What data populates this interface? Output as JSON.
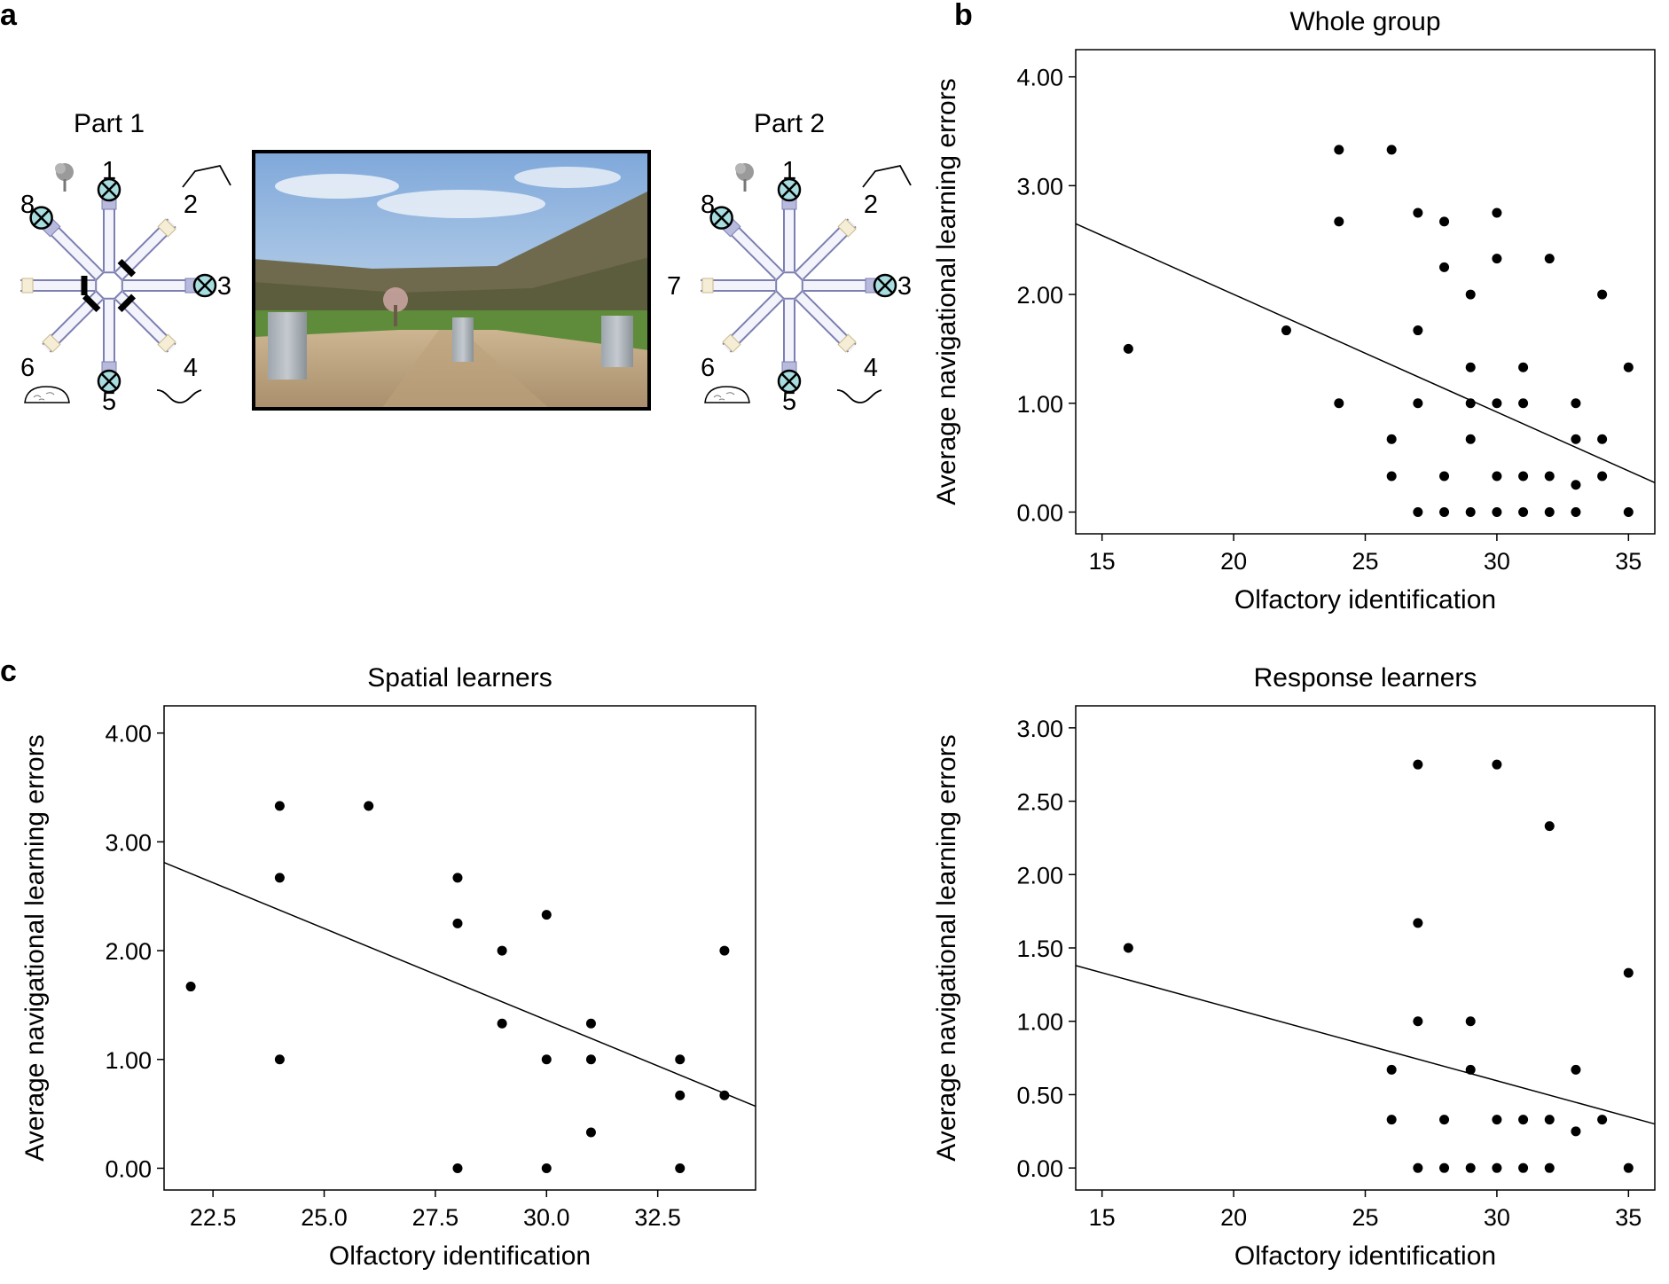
{
  "panel_labels": {
    "a": "a",
    "b": "b",
    "c": "c"
  },
  "panel_a": {
    "part1_label": "Part 1",
    "part2_label": "Part 2",
    "arm_numbers": [
      "1",
      "2",
      "3",
      "4",
      "5",
      "6",
      "7",
      "8"
    ],
    "part1_goal_arms": [
      1,
      3,
      5,
      8
    ],
    "part2_goal_arms": [
      1,
      3,
      5,
      8
    ],
    "landmark_icons": [
      "tree-icon",
      "hill-icon",
      "stone-icon",
      "wave-icon"
    ]
  },
  "chart_data": [
    {
      "id": "whole-group",
      "type": "scatter",
      "title": "Whole group",
      "xlabel": "Olfactory identification",
      "ylabel": "Average navigational learning errors",
      "xlim": [
        14,
        36
      ],
      "ylim": [
        -0.2,
        4.25
      ],
      "xticks": [
        "15",
        "20",
        "25",
        "30",
        "35"
      ],
      "yticks": [
        "0.00",
        "1.00",
        "2.00",
        "3.00",
        "4.00"
      ],
      "points": [
        [
          16,
          1.5
        ],
        [
          22,
          1.67
        ],
        [
          24,
          3.33
        ],
        [
          24,
          2.67
        ],
        [
          24,
          1.0
        ],
        [
          26,
          3.33
        ],
        [
          26,
          0.67
        ],
        [
          26,
          0.33
        ],
        [
          27,
          2.75
        ],
        [
          27,
          1.67
        ],
        [
          27,
          1.0
        ],
        [
          27,
          0
        ],
        [
          28,
          2.67
        ],
        [
          28,
          2.25
        ],
        [
          28,
          0.33
        ],
        [
          28,
          0
        ],
        [
          29,
          2.0
        ],
        [
          29,
          1.33
        ],
        [
          29,
          1.0
        ],
        [
          29,
          0.67
        ],
        [
          29,
          0
        ],
        [
          30,
          2.75
        ],
        [
          30,
          2.33
        ],
        [
          30,
          1.0
        ],
        [
          30,
          0.33
        ],
        [
          30,
          0
        ],
        [
          31,
          1.33
        ],
        [
          31,
          1.0
        ],
        [
          31,
          0.33
        ],
        [
          31,
          0
        ],
        [
          32,
          2.33
        ],
        [
          32,
          0.33
        ],
        [
          32,
          0
        ],
        [
          33,
          1.0
        ],
        [
          33,
          0.67
        ],
        [
          33,
          0.25
        ],
        [
          33,
          0
        ],
        [
          34,
          2.0
        ],
        [
          34,
          0.67
        ],
        [
          34,
          0.33
        ],
        [
          35,
          1.33
        ],
        [
          35,
          0
        ]
      ],
      "fit_line": [
        [
          14,
          2.65
        ],
        [
          36,
          0.27
        ]
      ]
    },
    {
      "id": "spatial-learners",
      "type": "scatter",
      "title": "Spatial learners",
      "xlabel": "Olfactory identification",
      "ylabel": "Average navigational learning errors",
      "xlim": [
        21.4,
        34.7
      ],
      "ylim": [
        -0.2,
        4.25
      ],
      "xticks": [
        "22.5",
        "25.0",
        "27.5",
        "30.0",
        "32.5"
      ],
      "yticks": [
        "0.00",
        "1.00",
        "2.00",
        "3.00",
        "4.00"
      ],
      "points": [
        [
          22,
          1.67
        ],
        [
          24,
          3.33
        ],
        [
          24,
          2.67
        ],
        [
          24,
          1.0
        ],
        [
          26,
          3.33
        ],
        [
          28,
          2.67
        ],
        [
          28,
          2.25
        ],
        [
          28,
          0
        ],
        [
          29,
          2.0
        ],
        [
          29,
          1.33
        ],
        [
          30,
          2.33
        ],
        [
          30,
          1.0
        ],
        [
          30,
          0
        ],
        [
          31,
          1.33
        ],
        [
          31,
          1.0
        ],
        [
          31,
          0.33
        ],
        [
          33,
          1.0
        ],
        [
          33,
          0.67
        ],
        [
          33,
          0
        ],
        [
          34,
          2.0
        ],
        [
          34,
          0.67
        ]
      ],
      "fit_line": [
        [
          21.4,
          2.81
        ],
        [
          34.7,
          0.57
        ]
      ]
    },
    {
      "id": "response-learners",
      "type": "scatter",
      "title": "Response learners",
      "xlabel": "Olfactory identification",
      "ylabel": "Average navigational learning errors",
      "xlim": [
        14,
        36
      ],
      "ylim": [
        -0.15,
        3.15
      ],
      "xticks": [
        "15",
        "20",
        "25",
        "30",
        "35"
      ],
      "yticks": [
        "0.00",
        "0.50",
        "1.00",
        "1.50",
        "2.00",
        "2.50",
        "3.00"
      ],
      "points": [
        [
          16,
          1.5
        ],
        [
          26,
          0.67
        ],
        [
          26,
          0.33
        ],
        [
          27,
          2.75
        ],
        [
          27,
          1.67
        ],
        [
          27,
          1.0
        ],
        [
          27,
          0
        ],
        [
          28,
          0.33
        ],
        [
          28,
          0
        ],
        [
          29,
          1.0
        ],
        [
          29,
          0.67
        ],
        [
          29,
          0
        ],
        [
          30,
          2.75
        ],
        [
          30,
          0.33
        ],
        [
          30,
          0
        ],
        [
          31,
          0.33
        ],
        [
          31,
          0
        ],
        [
          32,
          2.33
        ],
        [
          32,
          0.33
        ],
        [
          32,
          0
        ],
        [
          33,
          0.67
        ],
        [
          33,
          0.25
        ],
        [
          34,
          0.33
        ],
        [
          35,
          1.33
        ],
        [
          35,
          0
        ]
      ],
      "fit_line": [
        [
          14,
          1.38
        ],
        [
          36,
          0.3
        ]
      ]
    }
  ]
}
